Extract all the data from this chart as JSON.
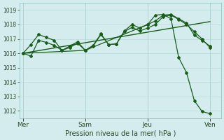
{
  "background_color": "#d4ecee",
  "grid_color": "#b8d8d8",
  "line_color": "#1a5c1a",
  "ylabel": "Pression niveau de la mer( hPa )",
  "ylim": [
    1011.5,
    1019.5
  ],
  "yticks": [
    1012,
    1013,
    1014,
    1015,
    1016,
    1017,
    1018,
    1019
  ],
  "day_labels": [
    "Mer",
    "Sam",
    "Jeu",
    "Ven"
  ],
  "day_positions": [
    0.0,
    0.333,
    0.667,
    1.0
  ],
  "xlim": [
    -0.02,
    1.06
  ],
  "series1_x": [
    0.0,
    0.042,
    0.083,
    0.125,
    0.167,
    0.208,
    0.25,
    0.292,
    0.333,
    0.375,
    0.417,
    0.458,
    0.5,
    0.542,
    0.583,
    0.625,
    0.667,
    0.708,
    0.75,
    0.792,
    0.833,
    0.875,
    0.917,
    0.958,
    1.0
  ],
  "series1_y": [
    1016.0,
    1016.6,
    1017.3,
    1017.1,
    1016.9,
    1016.2,
    1016.5,
    1016.8,
    1016.2,
    1016.55,
    1017.35,
    1016.6,
    1016.65,
    1017.55,
    1018.0,
    1017.75,
    1018.0,
    1018.25,
    1018.65,
    1018.7,
    1018.4,
    1018.1,
    1017.25,
    1016.9,
    1016.5
  ],
  "series2_x": [
    0.0,
    0.042,
    0.083,
    0.125,
    0.167,
    0.208,
    0.25,
    0.292,
    0.333,
    0.375,
    0.417,
    0.458,
    0.5,
    0.542,
    0.583,
    0.625,
    0.667,
    0.708,
    0.75,
    0.792,
    0.833,
    0.875,
    0.917,
    0.958,
    1.0
  ],
  "series2_y": [
    1016.0,
    1015.8,
    1016.9,
    1016.75,
    1016.55,
    1016.2,
    1016.4,
    1016.7,
    1016.2,
    1016.5,
    1017.3,
    1016.6,
    1016.65,
    1017.5,
    1017.8,
    1017.55,
    1017.75,
    1018.0,
    1018.55,
    1018.65,
    1018.35,
    1018.0,
    1017.5,
    1017.0,
    1016.4
  ],
  "series3_x": [
    0.0,
    0.333,
    0.667,
    0.708,
    0.75,
    0.792,
    0.833,
    0.875,
    0.917,
    0.958,
    1.0
  ],
  "series3_y": [
    1016.0,
    1016.2,
    1018.0,
    1018.65,
    1018.7,
    1018.4,
    1015.7,
    1014.65,
    1012.7,
    1011.95,
    1011.8
  ],
  "series4_x": [
    0.0,
    1.0
  ],
  "series4_y": [
    1016.0,
    1018.2
  ]
}
